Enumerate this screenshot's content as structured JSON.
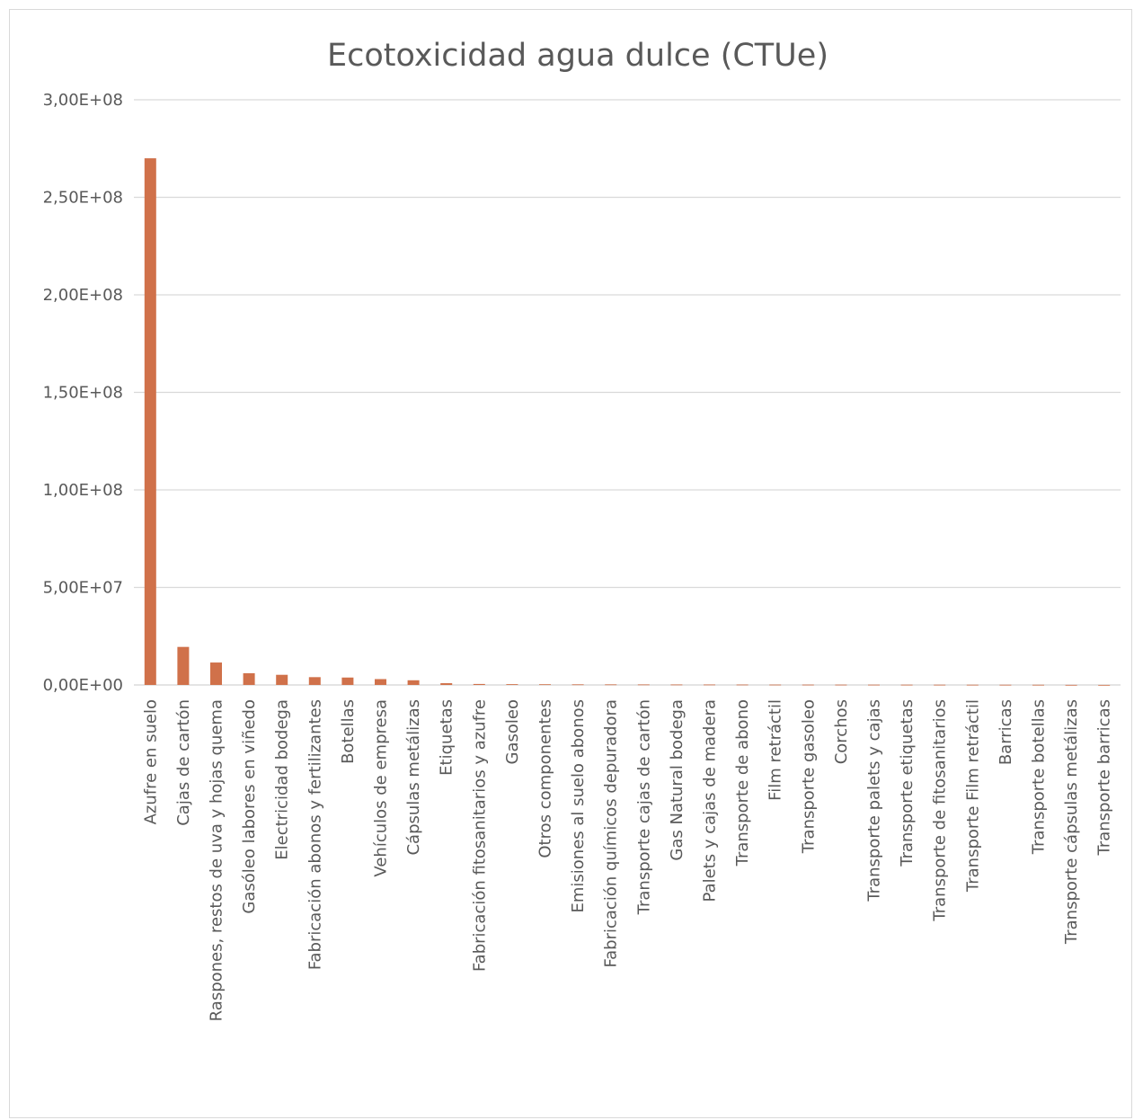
{
  "chart_data": {
    "type": "bar",
    "title": "Ecotoxicidad agua dulce (CTUe)",
    "xlabel": "",
    "ylabel": "",
    "ylim": [
      0,
      300000000
    ],
    "yticks": [
      0,
      50000000,
      100000000,
      150000000,
      200000000,
      250000000,
      300000000
    ],
    "ytick_labels": [
      "0,00E+00",
      "5,00E+07",
      "1,00E+08",
      "1,50E+08",
      "2,00E+08",
      "2,50E+08",
      "3,00E+08"
    ],
    "grid": true,
    "legend": "none",
    "bar_color": "#D0714A",
    "gridline_color": "#d9d9d9",
    "categories": [
      "Azufre en suelo",
      "Cajas de cartón",
      "Raspones, restos de uva y hojas quema",
      "Gasóleo labores en viñedo",
      "Electricidad bodega",
      "Fabricación abonos y fertilizantes",
      "Botellas",
      "Vehículos de empresa",
      "Cápsulas metálizas",
      "Etiquetas",
      "Fabricación fitosanitarios y azufre",
      "Gasoleo",
      "Otros componentes",
      "Emisiones al suelo abonos",
      "Fabricación químicos depuradora",
      "Transporte cajas de cartón",
      "Gas Natural bodega",
      "Palets y cajas de madera",
      "Transporte de abono",
      "Film retráctil",
      "Transporte gasoleo",
      "Corchos",
      "Transporte palets y cajas",
      "Transporte etiquetas",
      "Transporte de fitosanitarios",
      "Transporte Film retráctil",
      "Barricas",
      "Transporte botellas",
      "Transporte cápsulas metálizas",
      "Transporte barricas"
    ],
    "values": [
      270000000,
      19500000,
      11500000,
      6000000,
      5200000,
      4000000,
      3800000,
      3000000,
      2400000,
      900000,
      500000,
      400000,
      350000,
      300000,
      280000,
      250000,
      230000,
      220000,
      200000,
      180000,
      170000,
      160000,
      150000,
      140000,
      130000,
      120000,
      110000,
      100000,
      40000,
      20000
    ]
  }
}
